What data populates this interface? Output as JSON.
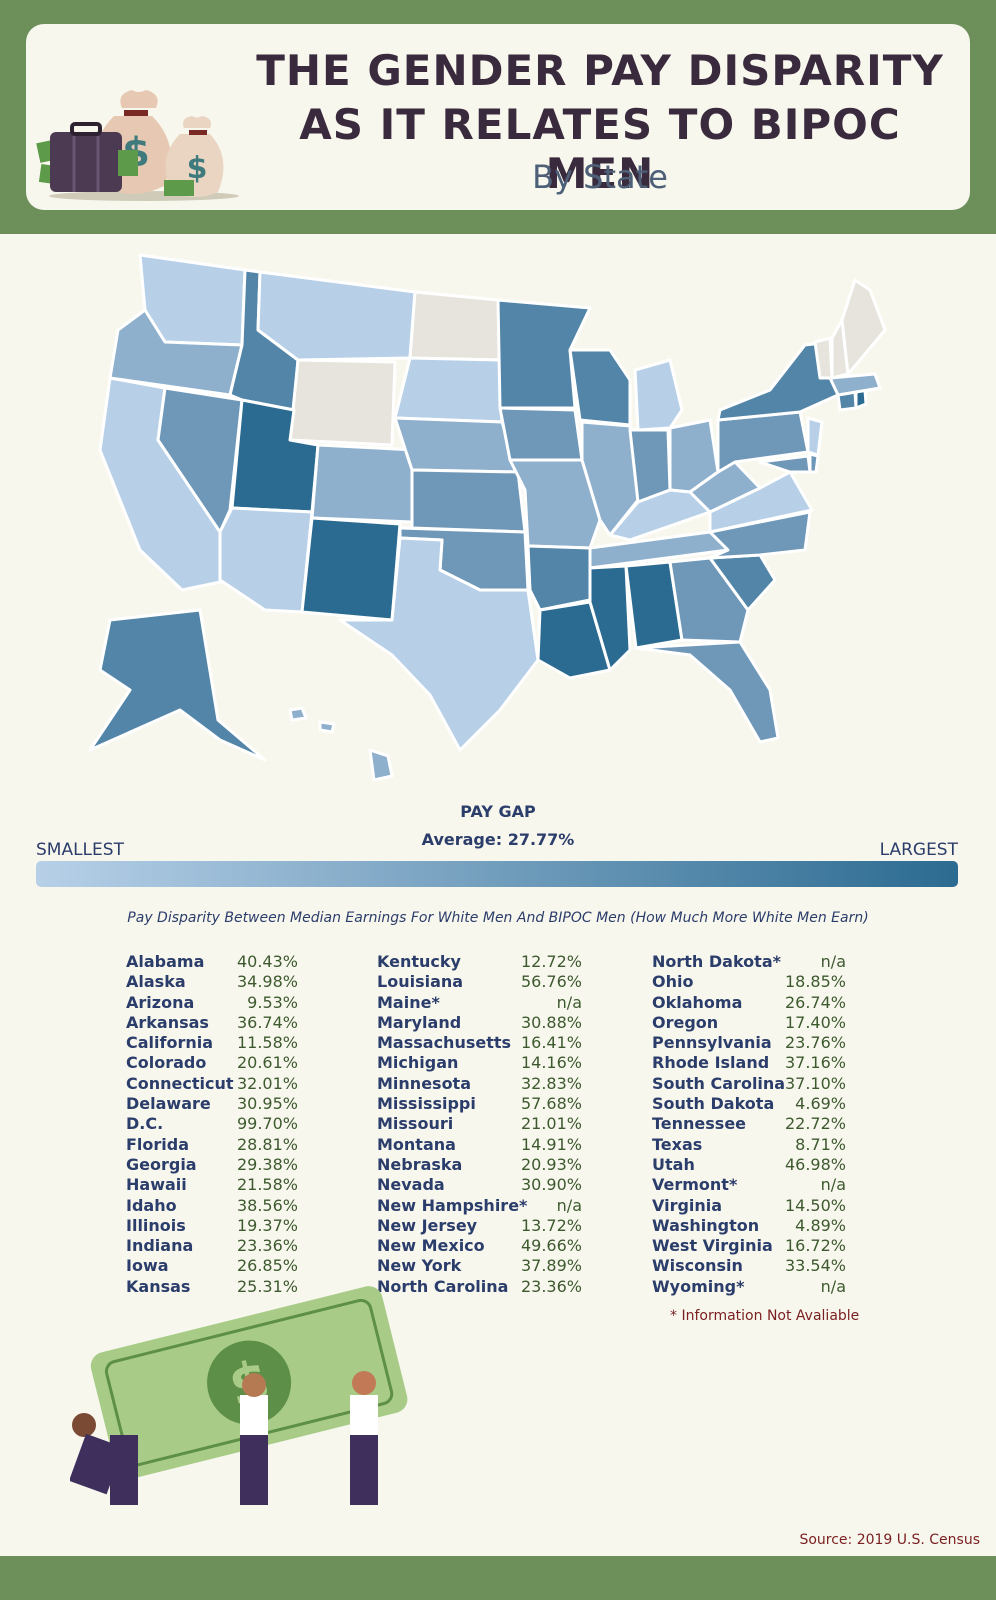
{
  "header": {
    "title_line1": "THE GENDER PAY DISPARITY",
    "title_line2": "AS IT RELATES TO BIPOC MEN",
    "subtitle": "By State"
  },
  "legend": {
    "title": "PAY GAP",
    "average": "Average: 27.77%",
    "smallest": "SMALLEST",
    "largest": "LARGEST",
    "gradient_start": "#b7d0e8",
    "gradient_end": "#2c6b91"
  },
  "table": {
    "caption": "Pay Disparity Between Median Earnings For White Men And BIPOC Men (How Much More White Men Earn)",
    "columns": [
      [
        {
          "state": "Alabama",
          "value": "40.43%"
        },
        {
          "state": "Alaska",
          "value": "34.98%"
        },
        {
          "state": "Arizona",
          "value": "9.53%"
        },
        {
          "state": "Arkansas",
          "value": "36.74%"
        },
        {
          "state": "California",
          "value": "11.58%"
        },
        {
          "state": "Colorado",
          "value": "20.61%"
        },
        {
          "state": "Connecticut",
          "value": "32.01%"
        },
        {
          "state": "Delaware",
          "value": "30.95%"
        },
        {
          "state": "D.C.",
          "value": "99.70%"
        },
        {
          "state": "Florida",
          "value": "28.81%"
        },
        {
          "state": "Georgia",
          "value": "29.38%"
        },
        {
          "state": "Hawaii",
          "value": "21.58%"
        },
        {
          "state": "Idaho",
          "value": "38.56%"
        },
        {
          "state": "Illinois",
          "value": "19.37%"
        },
        {
          "state": "Indiana",
          "value": "23.36%"
        },
        {
          "state": "Iowa",
          "value": "26.85%"
        },
        {
          "state": "Kansas",
          "value": "25.31%"
        }
      ],
      [
        {
          "state": "Kentucky",
          "value": "12.72%"
        },
        {
          "state": "Louisiana",
          "value": "56.76%"
        },
        {
          "state": "Maine*",
          "value": "n/a"
        },
        {
          "state": "Maryland",
          "value": "30.88%"
        },
        {
          "state": "Massachusetts",
          "value": "16.41%"
        },
        {
          "state": "Michigan",
          "value": "14.16%"
        },
        {
          "state": "Minnesota",
          "value": "32.83%"
        },
        {
          "state": "Mississippi",
          "value": "57.68%"
        },
        {
          "state": "Missouri",
          "value": "21.01%"
        },
        {
          "state": "Montana",
          "value": "14.91%"
        },
        {
          "state": "Nebraska",
          "value": "20.93%"
        },
        {
          "state": "Nevada",
          "value": "30.90%"
        },
        {
          "state": "New Hampshire*",
          "value": "n/a"
        },
        {
          "state": "New Jersey",
          "value": "13.72%"
        },
        {
          "state": "New Mexico",
          "value": "49.66%"
        },
        {
          "state": "New York",
          "value": "37.89%"
        },
        {
          "state": "North Carolina",
          "value": "23.36%"
        }
      ],
      [
        {
          "state": "North Dakota*",
          "value": "n/a"
        },
        {
          "state": "Ohio",
          "value": "18.85%"
        },
        {
          "state": "Oklahoma",
          "value": "26.74%"
        },
        {
          "state": "Oregon",
          "value": "17.40%"
        },
        {
          "state": "Pennsylvania",
          "value": "23.76%"
        },
        {
          "state": "Rhode Island",
          "value": "37.16%"
        },
        {
          "state": "South Carolina",
          "value": "37.10%"
        },
        {
          "state": "South Dakota",
          "value": "4.69%"
        },
        {
          "state": "Tennessee",
          "value": "22.72%"
        },
        {
          "state": "Texas",
          "value": "8.71%"
        },
        {
          "state": "Utah",
          "value": "46.98%"
        },
        {
          "state": "Vermont*",
          "value": "n/a"
        },
        {
          "state": "Virginia",
          "value": "14.50%"
        },
        {
          "state": "Washington",
          "value": "4.89%"
        },
        {
          "state": "West Virginia",
          "value": "16.72%"
        },
        {
          "state": "Wisconsin",
          "value": "33.54%"
        },
        {
          "state": "Wyoming*",
          "value": "n/a"
        }
      ]
    ]
  },
  "footnote": "* Information Not Avaliable",
  "source": "Source: 2019 U.S. Census",
  "colors": {
    "band": "#6d8f5a",
    "na": "#e6e4dc",
    "light": "#b7d0e8",
    "mid1": "#8fb0cc",
    "mid2": "#6f97b8",
    "mid3": "#5285a8",
    "dark": "#2c6b91"
  }
}
